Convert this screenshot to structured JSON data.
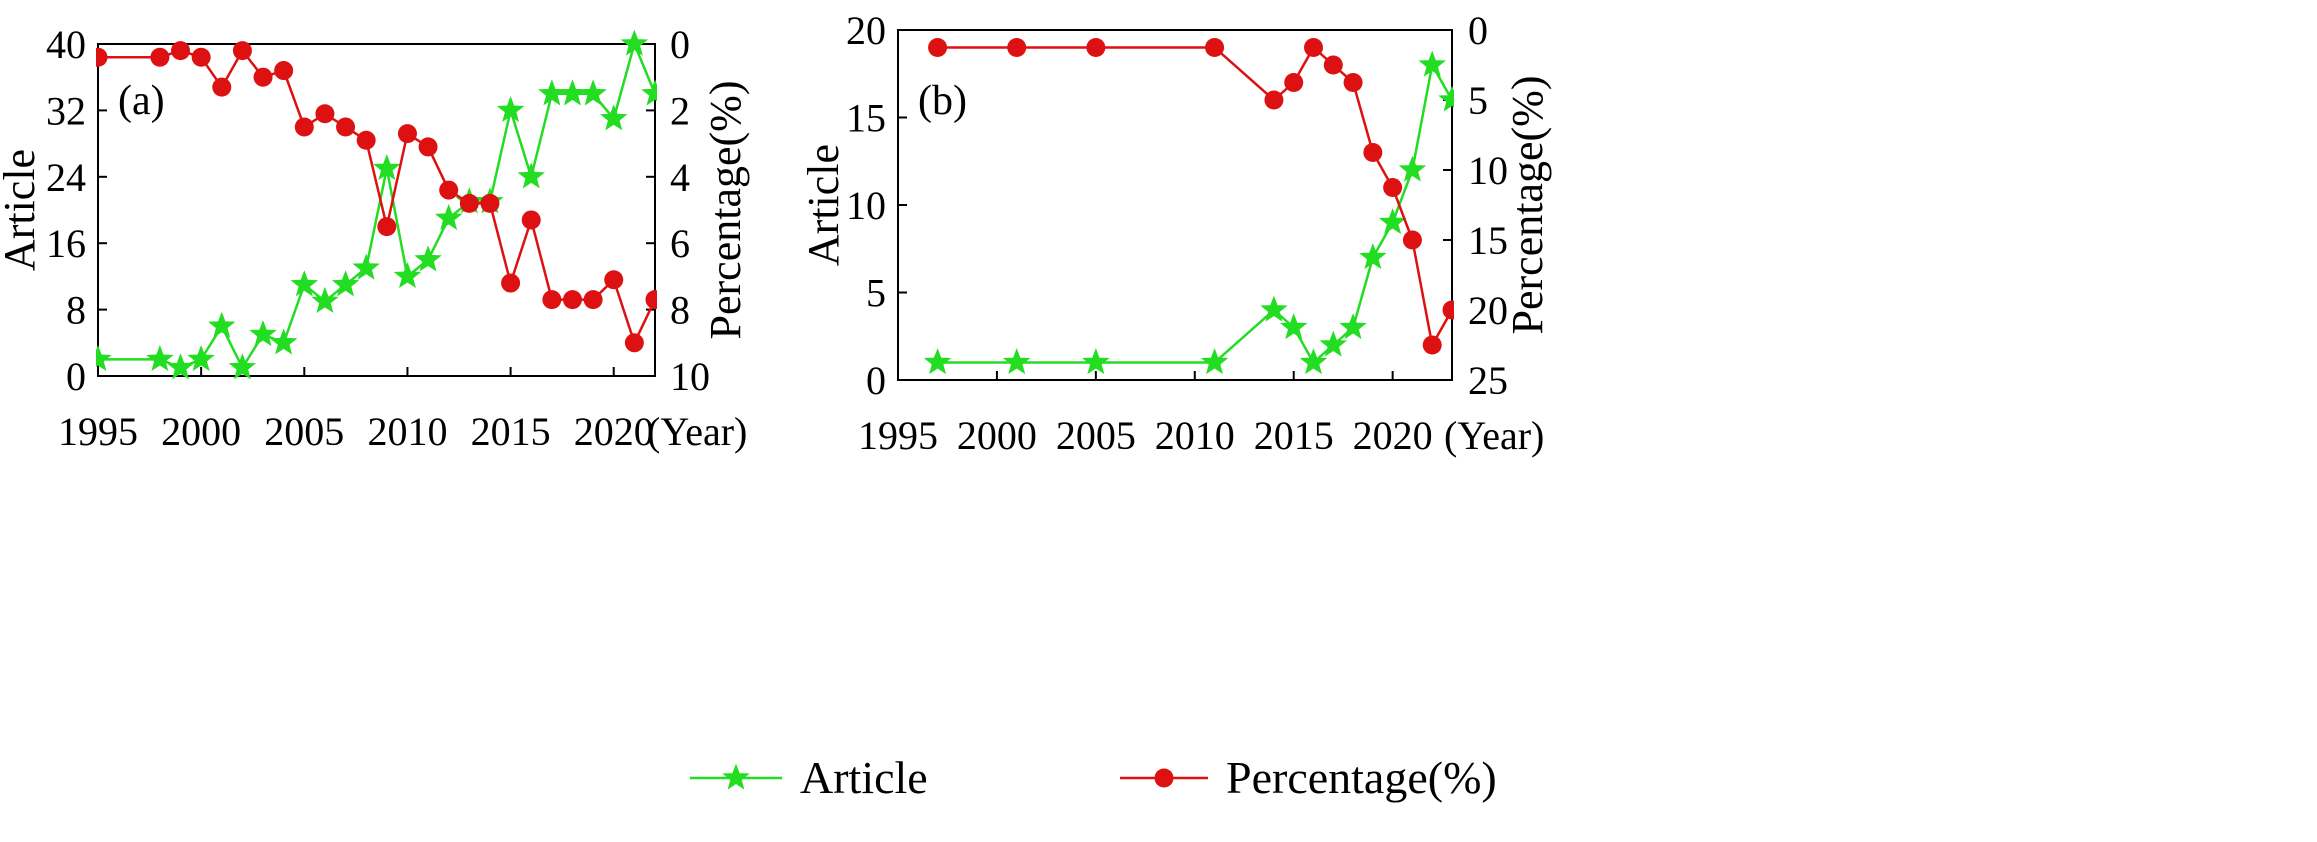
{
  "chart_data": [
    {
      "type": "line",
      "panel_label": "(a)",
      "x_suffix": "(Year)",
      "xlim": [
        1995,
        2022
      ],
      "xticks": [
        1995,
        2000,
        2005,
        2010,
        2015,
        2020
      ],
      "ylabel_left": "Article",
      "ylim_left": [
        0,
        40
      ],
      "yticks_left": [
        0,
        8,
        16,
        24,
        32,
        40
      ],
      "ylabel_right": "Percentage(%)",
      "ylim_right": [
        10,
        0
      ],
      "yticks_right": [
        0,
        2,
        4,
        6,
        8,
        10
      ],
      "grid": false,
      "series": [
        {
          "name": "Article",
          "axis": "left",
          "color": "#22dd22",
          "marker": "star",
          "x": [
            1995,
            1998,
            1999,
            2000,
            2001,
            2002,
            2003,
            2004,
            2005,
            2006,
            2007,
            2008,
            2009,
            2010,
            2011,
            2012,
            2013,
            2014,
            2015,
            2016,
            2017,
            2018,
            2019,
            2020,
            2021,
            2022
          ],
          "values": [
            2,
            2,
            1,
            2,
            6,
            1,
            5,
            4,
            11,
            9,
            11,
            13,
            25,
            12,
            14,
            19,
            21,
            21,
            32,
            24,
            34,
            34,
            34,
            31,
            40,
            34
          ]
        },
        {
          "name": "Percentage(%)",
          "axis": "right",
          "color": "#dd1111",
          "marker": "circle",
          "x": [
            1995,
            1998,
            1999,
            2000,
            2001,
            2002,
            2003,
            2004,
            2005,
            2006,
            2007,
            2008,
            2009,
            2010,
            2011,
            2012,
            2013,
            2014,
            2015,
            2016,
            2017,
            2018,
            2019,
            2020,
            2021,
            2022
          ],
          "values": [
            0.4,
            0.4,
            0.2,
            0.4,
            1.3,
            0.2,
            1.0,
            0.8,
            2.5,
            2.1,
            2.5,
            2.9,
            5.5,
            2.7,
            3.1,
            4.4,
            4.8,
            4.8,
            7.2,
            5.3,
            7.7,
            7.7,
            7.7,
            7.1,
            9.0,
            7.7
          ]
        }
      ]
    },
    {
      "type": "line",
      "panel_label": "(b)",
      "x_suffix": "(Year)",
      "xlim": [
        1995,
        2023
      ],
      "xticks": [
        1995,
        2000,
        2005,
        2010,
        2015,
        2020
      ],
      "ylabel_left": "Article",
      "ylim_left": [
        0,
        20
      ],
      "yticks_left": [
        0,
        5,
        10,
        15,
        20
      ],
      "ylabel_right": "Percentage(%)",
      "ylim_right": [
        25,
        0
      ],
      "yticks_right": [
        0,
        5,
        10,
        15,
        20,
        25
      ],
      "grid": false,
      "series": [
        {
          "name": "Article",
          "axis": "left",
          "color": "#22dd22",
          "marker": "star",
          "x": [
            1997,
            2001,
            2005,
            2011,
            2014,
            2015,
            2016,
            2017,
            2018,
            2019,
            2020,
            2021,
            2022,
            2023
          ],
          "values": [
            1,
            1,
            1,
            1,
            4,
            3,
            1,
            2,
            3,
            7,
            9,
            12,
            18,
            16
          ]
        },
        {
          "name": "Percentage(%)",
          "axis": "right",
          "color": "#dd1111",
          "marker": "circle",
          "x": [
            1997,
            2001,
            2005,
            2011,
            2014,
            2015,
            2016,
            2017,
            2018,
            2019,
            2020,
            2021,
            2022,
            2023
          ],
          "values": [
            1.25,
            1.25,
            1.25,
            1.25,
            5.0,
            3.75,
            1.25,
            2.5,
            3.75,
            8.75,
            11.25,
            15.0,
            22.5,
            20.0
          ]
        }
      ]
    }
  ],
  "legend": {
    "position": "bottom",
    "items": [
      {
        "label": "Article",
        "color": "#22dd22",
        "marker": "star"
      },
      {
        "label": "Percentage(%)",
        "color": "#dd1111",
        "marker": "circle"
      }
    ]
  }
}
